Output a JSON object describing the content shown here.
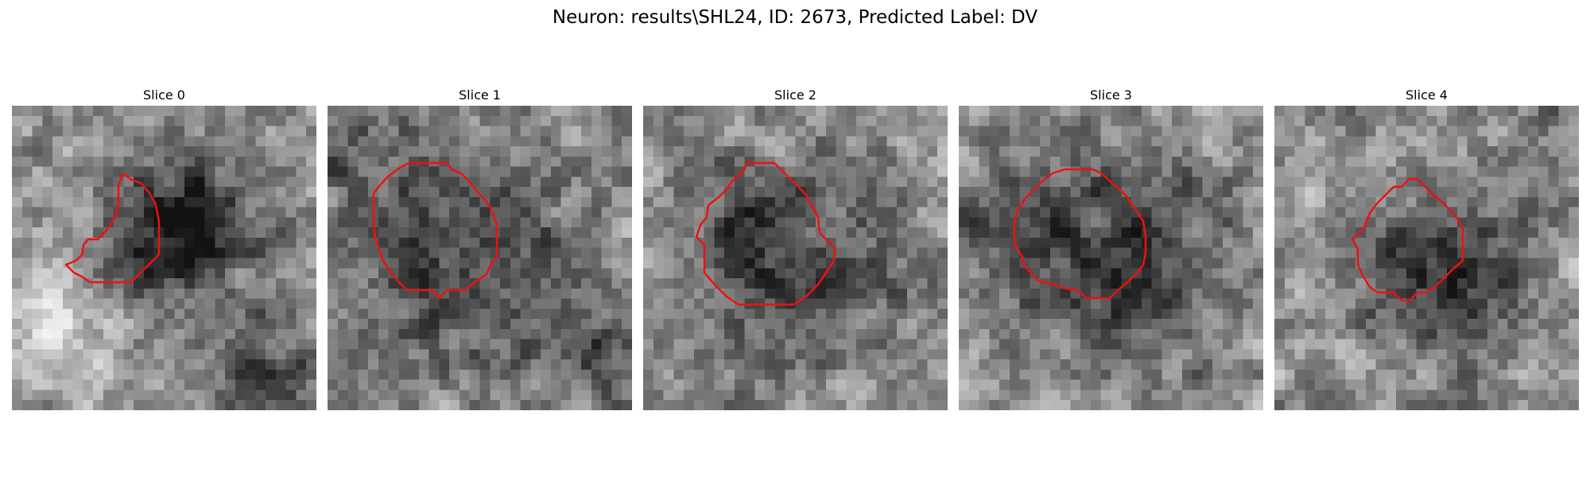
{
  "figure": {
    "title": "Neuron: results\\SHL24, ID: 2673, Predicted Label: DV",
    "contour_color": "#ee1111"
  },
  "slices": [
    {
      "title": "Slice 0"
    },
    {
      "title": "Slice 1"
    },
    {
      "title": "Slice 2"
    },
    {
      "title": "Slice 3"
    },
    {
      "title": "Slice 4"
    }
  ]
}
